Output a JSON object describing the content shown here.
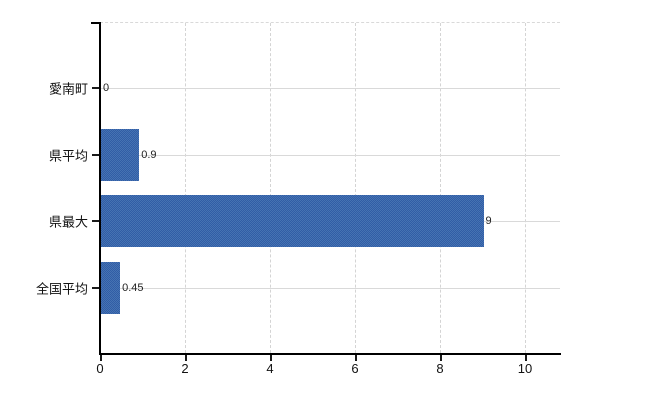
{
  "chart_data": {
    "type": "bar",
    "orientation": "horizontal",
    "title": "",
    "xlabel": "",
    "ylabel": "",
    "categories": [
      "愛南町",
      "県平均",
      "県最大",
      "全国平均"
    ],
    "values": [
      0,
      0.9,
      9,
      0.45
    ],
    "data_labels": [
      "0",
      "0.9",
      "9",
      "0.45"
    ],
    "x_ticks": [
      0,
      2,
      4,
      6,
      8,
      10
    ],
    "xlim": [
      0,
      10.8
    ],
    "grid": "on",
    "legend": "none",
    "colors": {
      "bar": "#3a66ab",
      "bar_dither_dark": "#315da6",
      "bar_dither_light": "#4673b2",
      "gridline": "#d9d9d9",
      "axis": "#000000",
      "text": "#111111",
      "background": "#ffffff"
    }
  }
}
